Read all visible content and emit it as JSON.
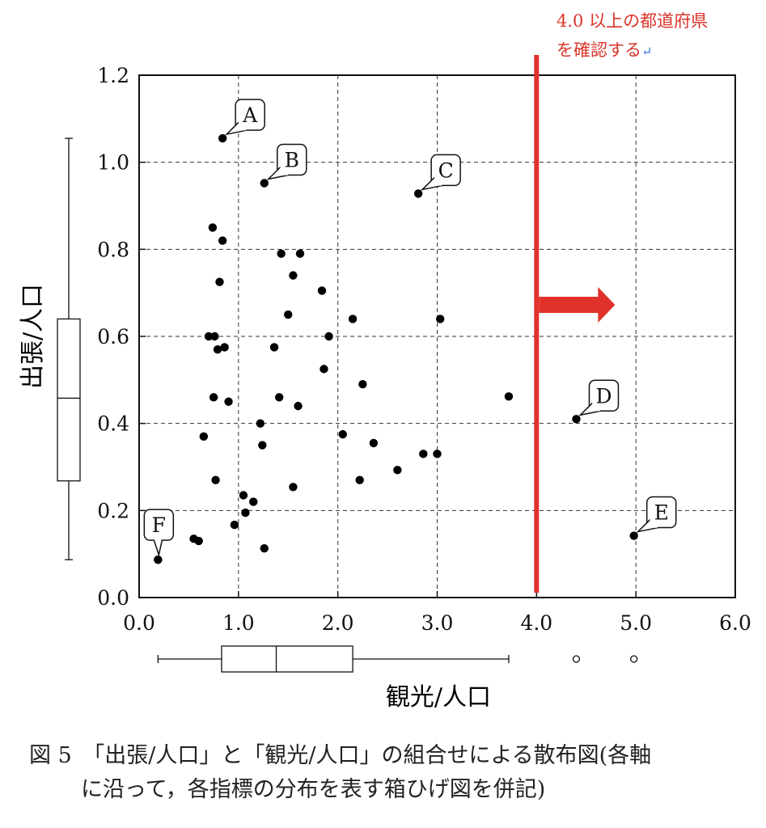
{
  "chart_data": {
    "type": "scatter",
    "xlabel": "観光/人口",
    "ylabel": "出張/人口",
    "xlim": [
      0,
      6
    ],
    "ylim": [
      0,
      1.2
    ],
    "xticks": [
      "0.0",
      "1.0",
      "2.0",
      "3.0",
      "4.0",
      "5.0",
      "6.0"
    ],
    "yticks": [
      "0.0",
      "0.2",
      "0.4",
      "0.6",
      "0.8",
      "1.0",
      "1.2"
    ],
    "grid": true,
    "points": [
      [
        0.19,
        0.087
      ],
      [
        0.55,
        0.135
      ],
      [
        0.6,
        0.13
      ],
      [
        0.65,
        0.37
      ],
      [
        0.7,
        0.6
      ],
      [
        0.74,
        0.85
      ],
      [
        0.75,
        0.46
      ],
      [
        0.76,
        0.6
      ],
      [
        0.77,
        0.27
      ],
      [
        0.79,
        0.57
      ],
      [
        0.81,
        0.725
      ],
      [
        0.84,
        0.82
      ],
      [
        0.86,
        0.575
      ],
      [
        0.9,
        0.45
      ],
      [
        0.96,
        0.167
      ],
      [
        1.05,
        0.235
      ],
      [
        1.07,
        0.195
      ],
      [
        1.15,
        0.22
      ],
      [
        1.22,
        0.4
      ],
      [
        1.24,
        0.35
      ],
      [
        1.26,
        0.113
      ],
      [
        1.36,
        0.575
      ],
      [
        1.41,
        0.46
      ],
      [
        1.43,
        0.79
      ],
      [
        1.5,
        0.65
      ],
      [
        1.55,
        0.74
      ],
      [
        1.55,
        0.254
      ],
      [
        1.6,
        0.44
      ],
      [
        1.62,
        0.79
      ],
      [
        1.84,
        0.705
      ],
      [
        1.86,
        0.525
      ],
      [
        1.91,
        0.6
      ],
      [
        2.05,
        0.375
      ],
      [
        2.15,
        0.64
      ],
      [
        2.22,
        0.27
      ],
      [
        2.25,
        0.49
      ],
      [
        2.36,
        0.355
      ],
      [
        2.6,
        0.293
      ],
      [
        2.86,
        0.33
      ],
      [
        3.0,
        0.33
      ],
      [
        3.03,
        0.64
      ],
      [
        3.72,
        0.462
      ]
    ],
    "labeled_points": [
      {
        "label": "A",
        "x": 0.84,
        "y": 1.055
      },
      {
        "label": "B",
        "x": 1.26,
        "y": 0.952
      },
      {
        "label": "C",
        "x": 2.81,
        "y": 0.928
      },
      {
        "label": "D",
        "x": 4.4,
        "y": 0.41
      },
      {
        "label": "E",
        "x": 4.98,
        "y": 0.142
      },
      {
        "label": "F",
        "x": 0.19,
        "y": 0.087
      }
    ],
    "x_boxplot": {
      "min": 0.19,
      "q1": 0.83,
      "median": 1.38,
      "q3": 2.15,
      "max": 3.72,
      "outliers": [
        4.4,
        4.98
      ]
    },
    "y_boxplot": {
      "min": 0.087,
      "q1": 0.268,
      "median": 0.458,
      "q3": 0.64,
      "max": 1.055
    },
    "threshold_line": {
      "x": 4.0,
      "color": "#e0322a"
    },
    "annotation": {
      "line1": "4.0 以上の都道府県",
      "line2": "を確認する",
      "return_mark": "↵"
    },
    "caption": {
      "line1": "図 5　「出張/人口」と「観光/人口」の組合せによる散布図(各軸",
      "line2": "に沿って，各指標の分布を表す箱ひげ図を併記)"
    }
  }
}
